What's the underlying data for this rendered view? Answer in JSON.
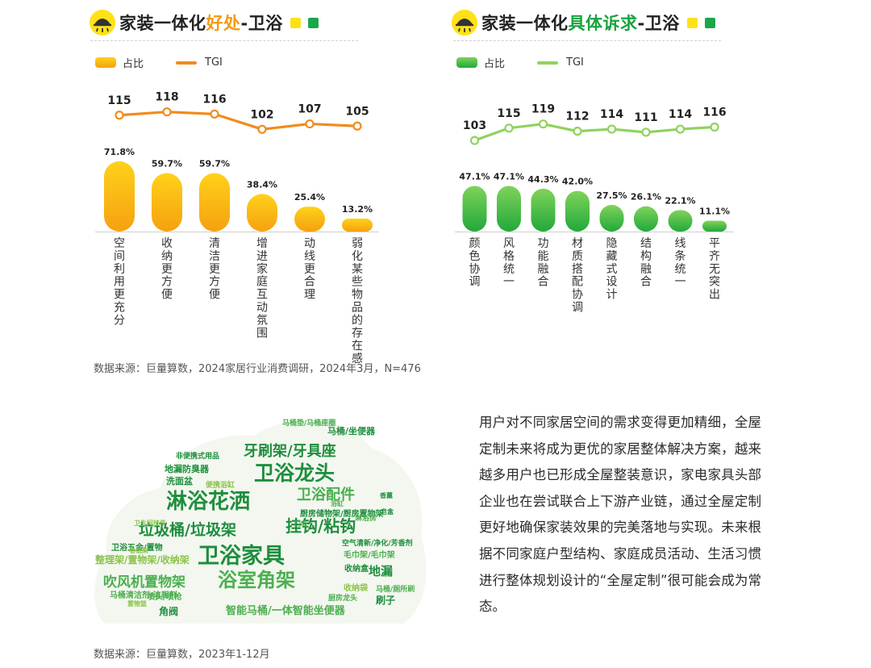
{
  "left_panel": {
    "title_prefix": "家装一体化",
    "title_highlight": "好处",
    "title_suffix": "-卫浴",
    "legend_bar": "占比",
    "legend_line": "TGI",
    "colors": {
      "bar_top": "#ffd11a",
      "bar_bottom": "#f5a10f",
      "line": "#f08c1e",
      "square1": "#ffe117",
      "square2": "#1aa64b"
    }
  },
  "right_panel": {
    "title_prefix": "家装一体化",
    "title_highlight": "具体诉求",
    "title_suffix": "-卫浴",
    "legend_bar": "占比",
    "legend_line": "TGI",
    "colors": {
      "bar_top": "#7fd35a",
      "bar_bottom": "#22a83a",
      "line": "#8fd35e",
      "square1": "#ffe117",
      "square2": "#1aa64b"
    }
  },
  "chart_data": [
    {
      "type": "bar",
      "categories": [
        "空间利用更充分",
        "收纳更方便",
        "清洁更方便",
        "增进家庭互动氛围",
        "动线更合理",
        "弱化某些物品的存在感"
      ],
      "series": [
        {
          "name": "占比",
          "values": [
            71.8,
            59.7,
            59.7,
            38.4,
            25.4,
            13.2
          ],
          "labels": [
            "71.8%",
            "59.7%",
            "59.7%",
            "38.4%",
            "25.4%",
            "13.2%"
          ]
        },
        {
          "name": "TGI",
          "type": "line",
          "values": [
            115,
            118,
            116,
            102,
            107,
            105
          ],
          "labels": [
            "115",
            "118",
            "116",
            "102",
            "107",
            "105"
          ]
        }
      ]
    },
    {
      "type": "bar",
      "categories": [
        "颜色协调",
        "风格统一",
        "功能融合",
        "材质搭配协调",
        "隐藏式设计",
        "结构融合",
        "线条统一",
        "平齐无突出"
      ],
      "series": [
        {
          "name": "占比",
          "values": [
            47.1,
            47.1,
            44.3,
            42.0,
            27.5,
            26.1,
            22.1,
            11.1
          ],
          "labels": [
            "47.1%",
            "47.1%",
            "44.3%",
            "42.0%",
            "27.5%",
            "26.1%",
            "22.1%",
            "11.1%"
          ]
        },
        {
          "name": "TGI",
          "type": "line",
          "values": [
            103,
            115,
            119,
            112,
            114,
            111,
            114,
            116
          ],
          "labels": [
            "103",
            "115",
            "119",
            "112",
            "114",
            "111",
            "114",
            "116"
          ]
        }
      ]
    }
  ],
  "source_top": "数据来源：巨量算数，2024家居行业消费调研，2024年3月，N=476",
  "source_bottom": "数据来源：巨量算数，2023年1-12月",
  "wordcloud": {
    "colors": {
      "dark": "#1e8e3e",
      "mid": "#4caf50",
      "light": "#8bc34a"
    },
    "words": [
      {
        "text": "卫浴家具",
        "shade": "dark"
      },
      {
        "text": "淋浴花洒",
        "shade": "dark"
      },
      {
        "text": "卫浴龙头",
        "shade": "dark"
      },
      {
        "text": "浴室角架",
        "shade": "mid"
      },
      {
        "text": "垃圾桶/垃圾架",
        "shade": "dark"
      },
      {
        "text": "挂钩/粘钩",
        "shade": "dark"
      },
      {
        "text": "牙刷架/牙具座",
        "shade": "dark"
      },
      {
        "text": "卫浴配件",
        "shade": "mid"
      },
      {
        "text": "吹风机置物架",
        "shade": "mid"
      },
      {
        "text": "整理架/置物架/收纳架",
        "shade": "light"
      },
      {
        "text": "智能马桶/一体智能坐便器",
        "shade": "mid"
      },
      {
        "text": "地漏",
        "shade": "dark"
      },
      {
        "text": "马桶/坐便器",
        "shade": "dark"
      },
      {
        "text": "厨房储物架/厨房置物架",
        "shade": "dark"
      },
      {
        "text": "毛巾架/毛巾架",
        "shade": "mid"
      },
      {
        "text": "空气清新/净化/芳香剂",
        "shade": "dark"
      },
      {
        "text": "卫浴五金/置物",
        "shade": "dark"
      },
      {
        "text": "地漏防臭器",
        "shade": "dark"
      },
      {
        "text": "洗面盆",
        "shade": "dark"
      },
      {
        "text": "马桶垫/马桶座圈",
        "shade": "mid"
      },
      {
        "text": "收纳袋",
        "shade": "light"
      },
      {
        "text": "刷子",
        "shade": "dark"
      },
      {
        "text": "马桶清洁剂/洁厕剂",
        "shade": "mid"
      },
      {
        "text": "角阀",
        "shade": "dark"
      },
      {
        "text": "厨房龙头",
        "shade": "mid"
      },
      {
        "text": "马桶/厕所刷",
        "shade": "mid"
      },
      {
        "text": "收纳盒",
        "shade": "dark"
      },
      {
        "text": "喷头/喷枪",
        "shade": "mid"
      },
      {
        "text": "便携浴缸",
        "shade": "light"
      },
      {
        "text": "非便携式用品",
        "shade": "dark"
      },
      {
        "text": "卫生间挂件",
        "shade": "light"
      },
      {
        "text": "淋浴房",
        "shade": "mid"
      },
      {
        "text": "门吸",
        "shade": "mid"
      },
      {
        "text": "香薰",
        "shade": "dark"
      },
      {
        "text": "卷纸架",
        "shade": "light"
      },
      {
        "text": "浴缸",
        "shade": "mid"
      },
      {
        "text": "皂盒",
        "shade": "dark"
      },
      {
        "text": "置物篮",
        "shade": "light"
      }
    ]
  },
  "paragraph": "用户对不同家居空间的需求变得更加精细，全屋定制未来将成为更优的家居整体解决方案，越来越多用户也已形成全屋整装意识，家电家具头部企业也在尝试联合上下游产业链，通过全屋定制更好地确保家装效果的完美落地与实现。未来根据不同家庭户型结构、家庭成员活动、生活习惯进行整体规划设计的“全屋定制”很可能会成为常态。"
}
